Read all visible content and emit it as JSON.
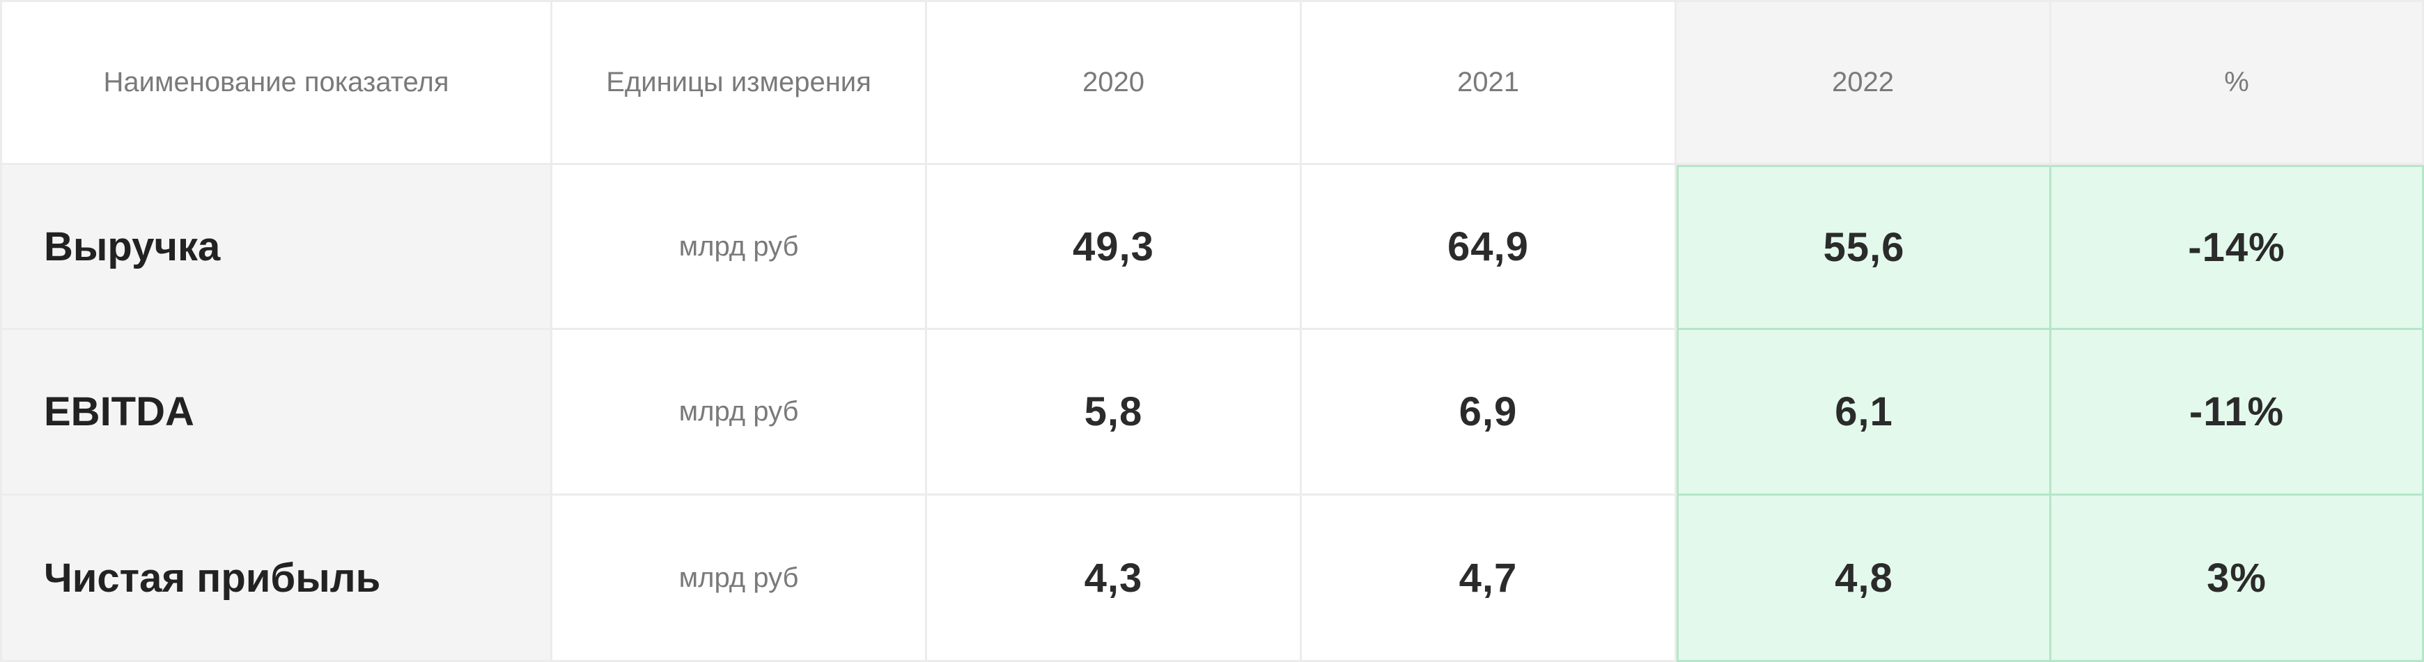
{
  "header": {
    "name": "Наименование показателя",
    "unit": "Единицы измерения",
    "y2020": "2020",
    "y2021": "2021",
    "y2022": "2022",
    "pct": "%"
  },
  "rows": [
    {
      "name": "Выручка",
      "unit": "млрд руб",
      "y2020": "49,3",
      "y2021": "64,9",
      "y2022": "55,6",
      "pct": "-14%"
    },
    {
      "name": "EBITDA",
      "unit": "млрд руб",
      "y2020": "5,8",
      "y2021": "6,9",
      "y2022": "6,1",
      "pct": "-11%"
    },
    {
      "name": "Чистая прибыль",
      "unit": "млрд руб",
      "y2020": "4,3",
      "y2021": "4,7",
      "y2022": "4,8",
      "pct": "3%"
    }
  ],
  "colors": {
    "highlight_bg": "#e3f9ec",
    "highlight_border": "#b5e6c8",
    "name_col_bg": "#f4f4f4"
  }
}
